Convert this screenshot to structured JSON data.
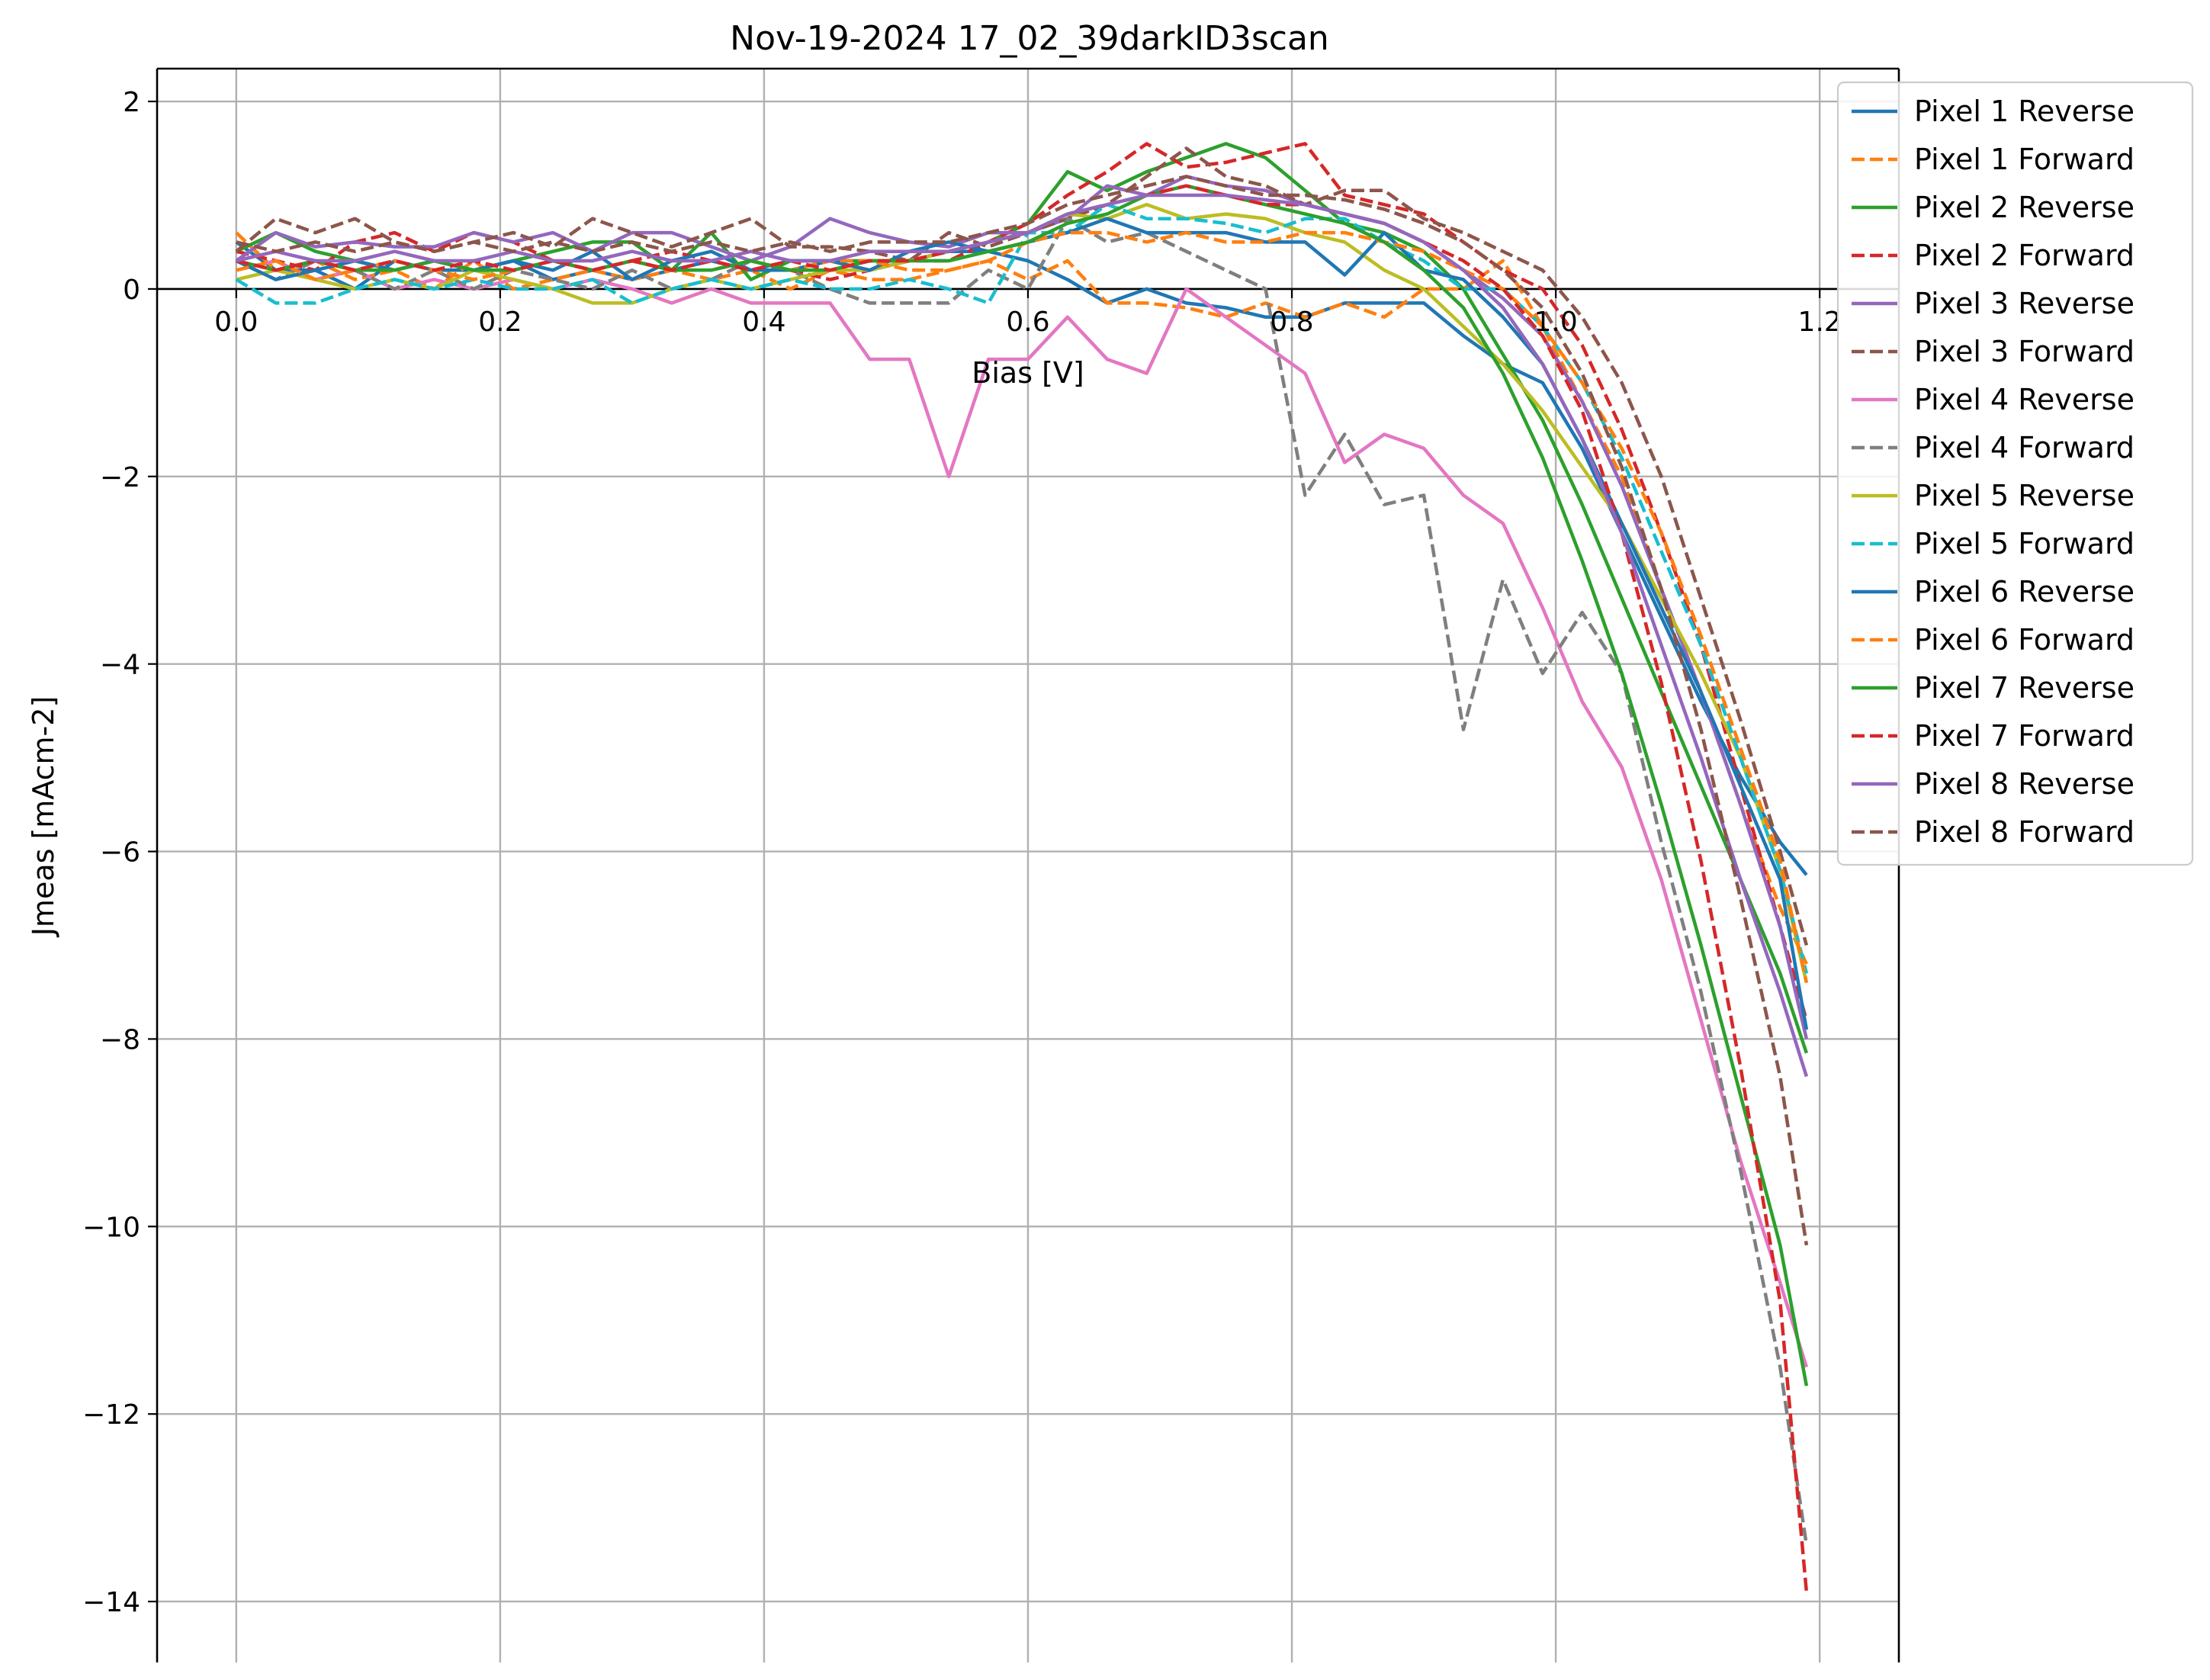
{
  "chart_data": {
    "type": "line",
    "title": "Nov-19-2024 17_02_39darkID3scan",
    "xlabel": "Bias [V]",
    "ylabel": "Jmeas [mAcm-2]",
    "xlim": [
      -0.06,
      1.26
    ],
    "ylim": [
      -14.65,
      2.35
    ],
    "x_ticks": [
      0.0,
      0.2,
      0.4,
      0.6,
      0.8,
      1.0,
      1.2
    ],
    "x_tick_labels": [
      "0.0",
      "0.2",
      "0.4",
      "0.6",
      "0.8",
      "1.0",
      "1.2"
    ],
    "y_ticks": [
      2,
      0,
      -2,
      -4,
      -6,
      -8,
      -10,
      -12,
      -14
    ],
    "y_tick_labels": [
      "2",
      "0",
      "−2",
      "−4",
      "−6",
      "−8",
      "−10",
      "−12",
      "−14"
    ],
    "grid": true,
    "zero_line": true,
    "legend_position": "top-right",
    "x": [
      0.0,
      0.03,
      0.06,
      0.09,
      0.12,
      0.15,
      0.18,
      0.21,
      0.24,
      0.27,
      0.3,
      0.33,
      0.36,
      0.39,
      0.42,
      0.45,
      0.48,
      0.51,
      0.54,
      0.57,
      0.6,
      0.63,
      0.66,
      0.69,
      0.72,
      0.75,
      0.78,
      0.81,
      0.84,
      0.87,
      0.9,
      0.93,
      0.96,
      0.99,
      1.02,
      1.05,
      1.08,
      1.11,
      1.14,
      1.17,
      1.19
    ],
    "series": [
      {
        "name": "Pixel 1 Reverse",
        "color": "#1f77b4",
        "dash": "solid",
        "values": [
          0.5,
          0.2,
          0.2,
          0.0,
          0.3,
          0.2,
          0.2,
          0.3,
          0.1,
          0.2,
          0.1,
          0.2,
          0.3,
          0.2,
          0.3,
          0.3,
          0.2,
          0.3,
          0.4,
          0.4,
          0.3,
          0.1,
          -0.15,
          0.0,
          -0.15,
          -0.2,
          -0.3,
          -0.3,
          -0.15,
          -0.15,
          -0.15,
          -0.5,
          -0.8,
          -1.0,
          -1.7,
          -2.6,
          -3.5,
          -4.4,
          -5.2,
          -5.9,
          -6.25
        ]
      },
      {
        "name": "Pixel 1 Forward",
        "color": "#ff7f0e",
        "dash": "dashed",
        "values": [
          0.6,
          0.2,
          0.3,
          0.1,
          0.2,
          0.0,
          0.3,
          0.0,
          0.1,
          0.2,
          0.1,
          0.2,
          0.1,
          0.2,
          0.0,
          0.2,
          0.1,
          0.1,
          0.2,
          0.3,
          0.1,
          0.3,
          -0.15,
          -0.15,
          -0.2,
          -0.3,
          -0.15,
          -0.3,
          -0.15,
          -0.3,
          0.0,
          0.0,
          0.3,
          -0.4,
          -1.2,
          -2.0,
          -3.2,
          -4.3,
          -5.5,
          -6.6,
          -7.2
        ]
      },
      {
        "name": "Pixel 2 Reverse",
        "color": "#2ca02c",
        "dash": "solid",
        "values": [
          0.4,
          0.6,
          0.4,
          0.3,
          0.2,
          0.3,
          0.2,
          0.3,
          0.4,
          0.5,
          0.5,
          0.2,
          0.6,
          0.1,
          0.3,
          0.3,
          0.3,
          0.3,
          0.4,
          0.5,
          0.7,
          1.25,
          1.05,
          1.25,
          1.4,
          1.55,
          1.4,
          1.05,
          0.7,
          0.6,
          0.4,
          0.0,
          -0.7,
          -1.4,
          -2.3,
          -3.3,
          -4.3,
          -5.3,
          -6.3,
          -7.3,
          -8.15
        ]
      },
      {
        "name": "Pixel 2 Forward",
        "color": "#d62728",
        "dash": "dashed",
        "values": [
          0.4,
          0.3,
          0.2,
          0.5,
          0.6,
          0.4,
          0.6,
          0.5,
          0.3,
          0.2,
          0.3,
          0.4,
          0.3,
          0.2,
          0.2,
          0.1,
          0.2,
          0.3,
          0.3,
          0.5,
          0.7,
          1.0,
          1.25,
          1.55,
          1.3,
          1.35,
          1.45,
          1.55,
          1.0,
          0.9,
          0.8,
          0.5,
          0.2,
          0.0,
          -0.6,
          -1.5,
          -2.6,
          -3.8,
          -5.3,
          -6.8,
          -7.8
        ]
      },
      {
        "name": "Pixel 3 Reverse",
        "color": "#9467bd",
        "dash": "solid",
        "values": [
          0.3,
          0.6,
          0.45,
          0.5,
          0.45,
          0.45,
          0.6,
          0.5,
          0.6,
          0.4,
          0.6,
          0.6,
          0.45,
          0.3,
          0.45,
          0.75,
          0.6,
          0.5,
          0.45,
          0.6,
          0.6,
          0.75,
          1.1,
          1.0,
          1.2,
          1.1,
          1.05,
          0.9,
          0.8,
          0.7,
          0.5,
          0.2,
          -0.1,
          -0.5,
          -1.2,
          -2.1,
          -3.2,
          -4.3,
          -5.5,
          -6.8,
          -8.0
        ]
      },
      {
        "name": "Pixel 3 Forward",
        "color": "#8c564b",
        "dash": "dashed",
        "values": [
          0.4,
          0.75,
          0.6,
          0.75,
          0.5,
          0.4,
          0.5,
          0.6,
          0.45,
          0.75,
          0.6,
          0.45,
          0.6,
          0.75,
          0.45,
          0.45,
          0.4,
          0.3,
          0.6,
          0.45,
          0.6,
          0.75,
          0.9,
          1.2,
          1.5,
          1.2,
          1.1,
          0.9,
          1.05,
          1.05,
          0.75,
          0.6,
          0.4,
          0.2,
          -0.3,
          -1.0,
          -2.0,
          -3.3,
          -4.6,
          -6.0,
          -7.0
        ]
      },
      {
        "name": "Pixel 4 Reverse",
        "color": "#e377c2",
        "dash": "solid",
        "values": [
          0.2,
          0.3,
          0.1,
          0.2,
          0.0,
          0.1,
          0.0,
          0.1,
          0.0,
          0.1,
          0.0,
          -0.15,
          0.0,
          -0.15,
          -0.15,
          -0.15,
          -0.75,
          -0.75,
          -2.0,
          -0.75,
          -0.75,
          -0.3,
          -0.75,
          -0.9,
          0.0,
          -0.3,
          -0.6,
          -0.9,
          -1.85,
          -1.55,
          -1.7,
          -2.2,
          -2.5,
          -3.4,
          -4.4,
          -5.1,
          -6.3,
          -7.8,
          -9.3,
          -10.6,
          -11.5
        ]
      },
      {
        "name": "Pixel 4 Forward",
        "color": "#7f7f7f",
        "dash": "dashed",
        "values": [
          0.3,
          0.1,
          0.3,
          0.2,
          0.0,
          0.2,
          0.0,
          0.2,
          0.1,
          0.0,
          0.2,
          0.0,
          0.1,
          0.3,
          0.2,
          0.0,
          -0.15,
          -0.15,
          -0.15,
          0.2,
          0.0,
          0.75,
          0.5,
          0.6,
          0.4,
          0.2,
          0.0,
          -2.2,
          -1.55,
          -2.3,
          -2.2,
          -4.7,
          -3.1,
          -4.1,
          -3.45,
          -4.1,
          -5.9,
          -7.5,
          -9.4,
          -11.5,
          -13.4
        ]
      },
      {
        "name": "Pixel 5 Reverse",
        "color": "#bcbd22",
        "dash": "solid",
        "values": [
          0.1,
          0.2,
          0.1,
          0.0,
          0.1,
          0.0,
          0.2,
          0.1,
          0.0,
          -0.15,
          -0.15,
          0.0,
          0.1,
          0.0,
          0.1,
          0.2,
          0.2,
          0.3,
          0.4,
          0.5,
          0.6,
          0.8,
          0.75,
          0.9,
          0.75,
          0.8,
          0.75,
          0.6,
          0.5,
          0.2,
          0.0,
          -0.4,
          -0.8,
          -1.3,
          -1.9,
          -2.5,
          -3.3,
          -4.1,
          -5.0,
          -6.2,
          -7.4
        ]
      },
      {
        "name": "Pixel 5 Forward",
        "color": "#17becf",
        "dash": "dashed",
        "values": [
          0.1,
          -0.15,
          -0.15,
          0.0,
          0.1,
          0.0,
          0.1,
          0.0,
          0.0,
          0.1,
          -0.15,
          0.0,
          0.1,
          0.0,
          0.1,
          0.0,
          0.0,
          0.1,
          0.0,
          -0.15,
          0.6,
          0.6,
          0.9,
          0.75,
          0.75,
          0.7,
          0.6,
          0.75,
          0.75,
          0.5,
          0.3,
          0.0,
          0.0,
          -0.4,
          -1.0,
          -1.8,
          -2.8,
          -3.8,
          -5.0,
          -6.2,
          -7.3
        ]
      },
      {
        "name": "Pixel 6 Reverse",
        "color": "#1f77b4",
        "dash": "solid",
        "values": [
          0.3,
          0.1,
          0.2,
          0.3,
          0.2,
          0.3,
          0.2,
          0.3,
          0.2,
          0.4,
          0.1,
          0.3,
          0.4,
          0.2,
          0.2,
          0.3,
          0.2,
          0.4,
          0.5,
          0.4,
          0.5,
          0.6,
          0.75,
          0.6,
          0.6,
          0.6,
          0.5,
          0.5,
          0.15,
          0.6,
          0.2,
          0.1,
          -0.3,
          -0.8,
          -1.6,
          -2.5,
          -3.4,
          -4.3,
          -5.3,
          -6.3,
          -7.9
        ]
      },
      {
        "name": "Pixel 6 Forward",
        "color": "#ff7f0e",
        "dash": "dashed",
        "values": [
          0.2,
          0.3,
          0.1,
          0.2,
          0.3,
          0.2,
          0.1,
          0.2,
          0.3,
          0.2,
          0.3,
          0.2,
          0.2,
          0.3,
          0.2,
          0.3,
          0.3,
          0.2,
          0.2,
          0.3,
          0.5,
          0.6,
          0.6,
          0.5,
          0.6,
          0.5,
          0.5,
          0.6,
          0.6,
          0.5,
          0.4,
          0.2,
          0.0,
          -0.4,
          -1.0,
          -1.7,
          -2.6,
          -3.7,
          -4.9,
          -6.1,
          -7.4
        ]
      },
      {
        "name": "Pixel 7 Reverse",
        "color": "#2ca02c",
        "dash": "solid",
        "values": [
          0.3,
          0.2,
          0.3,
          0.2,
          0.2,
          0.3,
          0.2,
          0.2,
          0.3,
          0.2,
          0.3,
          0.2,
          0.2,
          0.3,
          0.2,
          0.2,
          0.3,
          0.3,
          0.3,
          0.4,
          0.5,
          0.7,
          0.8,
          1.0,
          1.1,
          1.0,
          0.9,
          0.8,
          0.7,
          0.5,
          0.2,
          -0.2,
          -0.9,
          -1.8,
          -2.9,
          -4.1,
          -5.5,
          -7.0,
          -8.6,
          -10.2,
          -11.7
        ]
      },
      {
        "name": "Pixel 7 Forward",
        "color": "#d62728",
        "dash": "dashed",
        "values": [
          0.3,
          0.2,
          0.3,
          0.2,
          0.3,
          0.2,
          0.3,
          0.2,
          0.3,
          0.2,
          0.3,
          0.2,
          0.3,
          0.2,
          0.3,
          0.2,
          0.3,
          0.3,
          0.4,
          0.5,
          0.6,
          0.8,
          0.9,
          1.0,
          1.1,
          1.0,
          0.9,
          0.9,
          0.8,
          0.7,
          0.5,
          0.3,
          0.0,
          -0.5,
          -1.3,
          -2.6,
          -4.2,
          -6.1,
          -8.3,
          -10.8,
          -13.9
        ]
      },
      {
        "name": "Pixel 8 Reverse",
        "color": "#9467bd",
        "dash": "solid",
        "values": [
          0.3,
          0.4,
          0.3,
          0.3,
          0.4,
          0.3,
          0.3,
          0.4,
          0.3,
          0.3,
          0.4,
          0.3,
          0.3,
          0.4,
          0.3,
          0.3,
          0.4,
          0.4,
          0.4,
          0.5,
          0.6,
          0.8,
          0.9,
          1.0,
          1.0,
          1.0,
          0.95,
          0.9,
          0.8,
          0.7,
          0.5,
          0.2,
          -0.2,
          -0.8,
          -1.6,
          -2.6,
          -3.8,
          -5.0,
          -6.3,
          -7.5,
          -8.4
        ]
      },
      {
        "name": "Pixel 8 Forward",
        "color": "#8c564b",
        "dash": "dashed",
        "values": [
          0.5,
          0.4,
          0.5,
          0.4,
          0.5,
          0.4,
          0.5,
          0.4,
          0.5,
          0.4,
          0.5,
          0.4,
          0.5,
          0.4,
          0.5,
          0.4,
          0.5,
          0.5,
          0.5,
          0.6,
          0.7,
          0.9,
          1.0,
          1.1,
          1.2,
          1.1,
          1.0,
          1.0,
          0.95,
          0.85,
          0.7,
          0.5,
          0.2,
          -0.2,
          -0.9,
          -1.9,
          -3.2,
          -4.7,
          -6.5,
          -8.4,
          -10.2
        ]
      }
    ]
  }
}
